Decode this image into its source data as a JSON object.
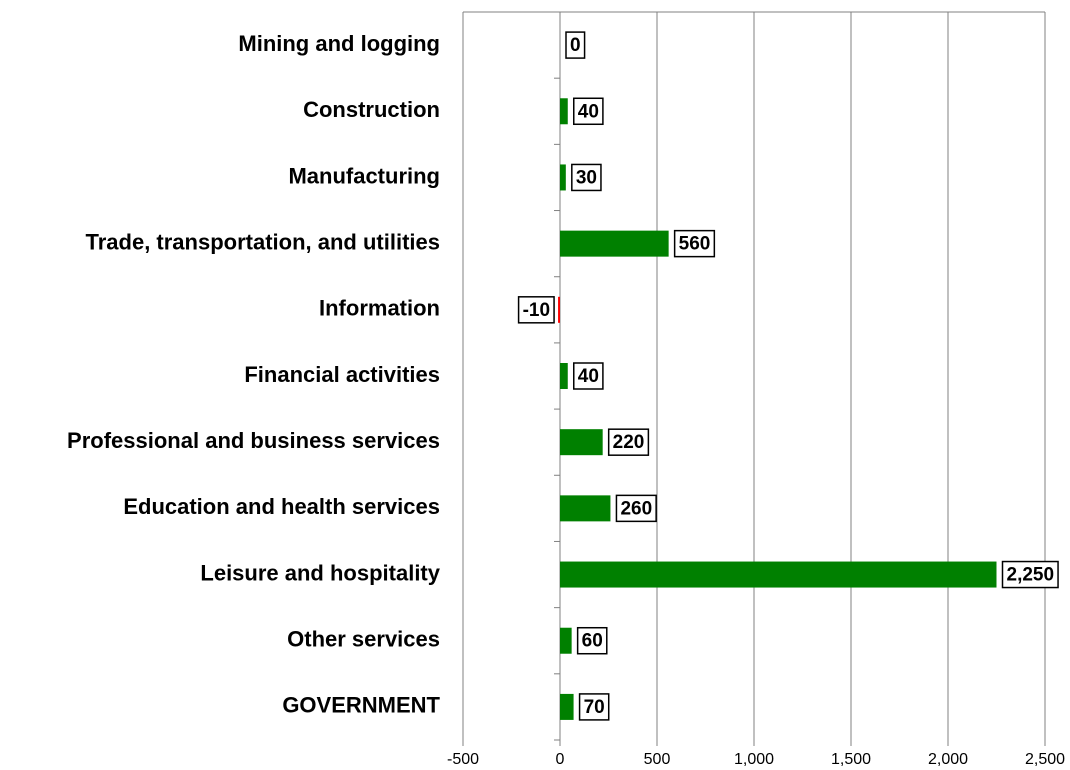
{
  "chart_data": {
    "type": "bar",
    "orientation": "horizontal",
    "categories": [
      "Mining and logging",
      "Construction",
      "Manufacturing",
      "Trade, transportation, and utilities",
      "Information",
      "Financial activities",
      "Professional and business services",
      "Education and health services",
      "Leisure and hospitality",
      "Other services",
      "GOVERNMENT"
    ],
    "values": [
      0,
      40,
      30,
      560,
      -10,
      40,
      220,
      260,
      2250,
      60,
      70
    ],
    "value_labels": [
      "0",
      "40",
      "30",
      "560",
      "-10",
      "40",
      "220",
      "260",
      "2,250",
      "60",
      "70"
    ],
    "color": "#008000",
    "negative_color": "#ff0000",
    "xlim": [
      -500,
      2500
    ],
    "xticks": [
      -500,
      0,
      500,
      {
        "value": 1000,
        "label": "1,000"
      },
      {
        "value": 1500,
        "label": "1,500"
      },
      {
        "value": 2000,
        "label": "2,000"
      },
      {
        "value": 2500,
        "label": "2,500"
      }
    ],
    "grid": true
  }
}
